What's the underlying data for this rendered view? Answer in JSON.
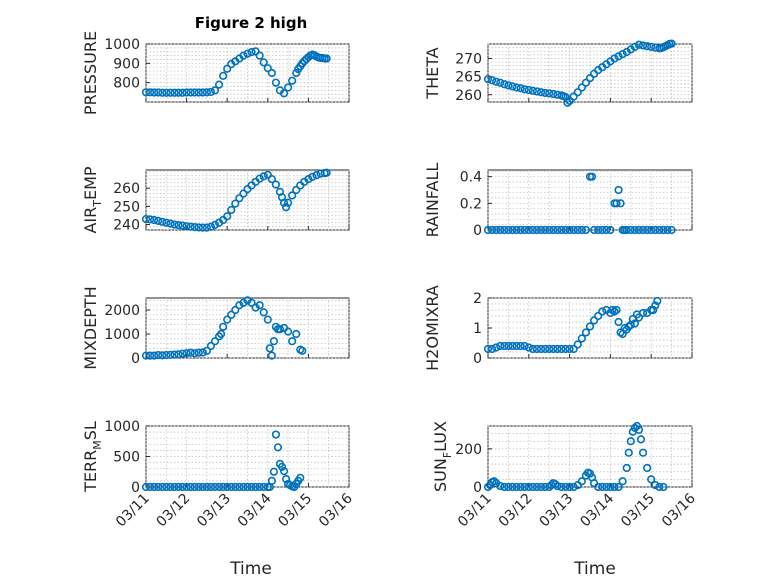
{
  "figure": {
    "title": "Figure 2 high",
    "marker_color": "#0072bd",
    "xlabel": "Time"
  },
  "chart_data": [
    {
      "id": "pressure",
      "type": "scatter",
      "title": "Figure 2 high",
      "ylabel": "PRESSURE",
      "ylim": [
        700,
        1000
      ],
      "yticks": [
        800,
        900,
        1000
      ],
      "xlim": [
        0,
        5
      ],
      "xticks": [
        0,
        1,
        2,
        3,
        4,
        5
      ],
      "xticklabels": [
        "03/11",
        "03/12",
        "03/13",
        "03/14",
        "03/15",
        "03/16"
      ],
      "show_xticklabels": false,
      "grid": true,
      "x": [
        0.0,
        0.1,
        0.2,
        0.3,
        0.4,
        0.5,
        0.6,
        0.7,
        0.8,
        0.9,
        1.0,
        1.1,
        1.2,
        1.3,
        1.4,
        1.5,
        1.6,
        1.7,
        1.8,
        1.9,
        2.0,
        2.1,
        2.2,
        2.3,
        2.4,
        2.5,
        2.6,
        2.7,
        2.8,
        2.9,
        3.0,
        3.1,
        3.2,
        3.3,
        3.4,
        3.5,
        3.6,
        3.7,
        3.75,
        3.8,
        3.85,
        3.9,
        3.95,
        4.0,
        4.05,
        4.1,
        4.15,
        4.2,
        4.25,
        4.3,
        4.35,
        4.4,
        4.45
      ],
      "y": [
        750,
        750,
        749,
        749,
        748,
        748,
        748,
        748,
        748,
        748,
        749,
        749,
        749,
        749,
        749,
        750,
        752,
        760,
        790,
        835,
        872,
        896,
        910,
        925,
        940,
        950,
        958,
        962,
        940,
        905,
        875,
        850,
        800,
        760,
        745,
        775,
        810,
        850,
        870,
        885,
        900,
        912,
        922,
        932,
        940,
        945,
        942,
        935,
        930,
        928,
        928,
        925,
        925
      ]
    },
    {
      "id": "theta",
      "type": "scatter",
      "ylabel": "THETA",
      "ylim": [
        258,
        274
      ],
      "yticks": [
        260,
        265,
        270
      ],
      "xlim": [
        0,
        5
      ],
      "xticks": [
        0,
        1,
        2,
        3,
        4,
        5
      ],
      "xticklabels": [
        "03/11",
        "03/12",
        "03/13",
        "03/14",
        "03/15",
        "03/16"
      ],
      "show_xticklabels": false,
      "grid": true,
      "x": [
        0.0,
        0.1,
        0.2,
        0.3,
        0.4,
        0.5,
        0.6,
        0.7,
        0.8,
        0.9,
        1.0,
        1.1,
        1.2,
        1.3,
        1.4,
        1.5,
        1.6,
        1.7,
        1.8,
        1.85,
        1.9,
        1.95,
        2.0,
        2.1,
        2.2,
        2.3,
        2.4,
        2.5,
        2.6,
        2.7,
        2.8,
        2.9,
        3.0,
        3.1,
        3.2,
        3.3,
        3.4,
        3.5,
        3.6,
        3.7,
        3.8,
        3.9,
        4.0,
        4.1,
        4.2,
        4.25,
        4.3,
        4.35,
        4.4,
        4.45,
        4.5
      ],
      "y": [
        264.3,
        264.0,
        263.6,
        263.3,
        262.9,
        262.6,
        262.3,
        262.0,
        261.8,
        261.5,
        261.3,
        261.1,
        260.9,
        260.7,
        260.5,
        260.4,
        260.2,
        260.0,
        259.8,
        259.6,
        259.4,
        257.8,
        258.3,
        259.5,
        260.7,
        262.0,
        263.3,
        264.6,
        265.8,
        266.8,
        267.6,
        268.4,
        269.2,
        270.0,
        270.6,
        271.2,
        271.8,
        272.5,
        273.2,
        273.8,
        273.6,
        273.4,
        273.2,
        273.0,
        272.8,
        272.9,
        273.1,
        273.4,
        273.7,
        274.0,
        274.1
      ]
    },
    {
      "id": "air-temp",
      "type": "scatter",
      "ylabel": "AIR_TEMP",
      "ylim": [
        237,
        270
      ],
      "yticks": [
        240,
        250,
        260
      ],
      "xlim": [
        0,
        5
      ],
      "xticks": [
        0,
        1,
        2,
        3,
        4,
        5
      ],
      "xticklabels": [
        "03/11",
        "03/12",
        "03/13",
        "03/14",
        "03/15",
        "03/16"
      ],
      "show_xticklabels": false,
      "grid": true,
      "x": [
        0.0,
        0.1,
        0.2,
        0.3,
        0.4,
        0.5,
        0.6,
        0.7,
        0.8,
        0.9,
        1.0,
        1.1,
        1.2,
        1.3,
        1.4,
        1.5,
        1.6,
        1.7,
        1.8,
        1.9,
        2.0,
        2.1,
        2.2,
        2.3,
        2.4,
        2.5,
        2.6,
        2.7,
        2.8,
        2.9,
        3.0,
        3.1,
        3.2,
        3.3,
        3.35,
        3.4,
        3.45,
        3.5,
        3.6,
        3.7,
        3.8,
        3.9,
        4.0,
        4.1,
        4.2,
        4.3,
        4.4,
        4.45
      ],
      "y": [
        243,
        242.8,
        242.5,
        242,
        241.5,
        241,
        240.5,
        240,
        239.7,
        239.4,
        239.1,
        238.8,
        238.6,
        238.4,
        238.3,
        238.3,
        238.8,
        239.8,
        241,
        242.5,
        244.5,
        248,
        251.5,
        254.5,
        257,
        259.5,
        261.5,
        263.5,
        265.3,
        266.5,
        267.3,
        265,
        262,
        258,
        255,
        252,
        249.5,
        252,
        256,
        259,
        261.5,
        263.5,
        265,
        266.2,
        267.2,
        268,
        268.3,
        268.5
      ]
    },
    {
      "id": "rainfall",
      "type": "scatter",
      "ylabel": "RAINFALL",
      "ylim": [
        0,
        0.45
      ],
      "yticks": [
        0,
        0.2,
        0.4
      ],
      "xlim": [
        0,
        5
      ],
      "xticks": [
        0,
        1,
        2,
        3,
        4,
        5
      ],
      "xticklabels": [
        "03/11",
        "03/12",
        "03/13",
        "03/14",
        "03/15",
        "03/16"
      ],
      "show_xticklabels": false,
      "grid": true,
      "x": [
        0.0,
        0.1,
        0.2,
        0.3,
        0.4,
        0.5,
        0.6,
        0.7,
        0.8,
        0.9,
        1.0,
        1.1,
        1.2,
        1.3,
        1.4,
        1.5,
        1.6,
        1.7,
        1.8,
        1.9,
        2.0,
        2.1,
        2.2,
        2.3,
        2.4,
        2.5,
        2.55,
        2.6,
        2.7,
        2.8,
        2.9,
        3.0,
        3.1,
        3.15,
        3.2,
        3.25,
        3.3,
        3.35,
        3.4,
        3.5,
        3.6,
        3.7,
        3.8,
        3.9,
        4.0,
        4.1,
        4.2,
        4.3,
        4.4,
        4.5
      ],
      "y": [
        0,
        0,
        0,
        0,
        0,
        0,
        0,
        0,
        0,
        0,
        0,
        0,
        0,
        0,
        0,
        0,
        0,
        0,
        0,
        0,
        0,
        0,
        0,
        0,
        0,
        0.4,
        0.4,
        0,
        0,
        0,
        0,
        0,
        0.2,
        0.2,
        0.3,
        0.2,
        0,
        0,
        0,
        0,
        0,
        0,
        0,
        0,
        0,
        0,
        0,
        0,
        0,
        0
      ]
    },
    {
      "id": "mixdepth",
      "type": "scatter",
      "ylabel": "MIXDEPTH",
      "ylim": [
        0,
        2500
      ],
      "yticks": [
        0,
        1000,
        2000
      ],
      "xlim": [
        0,
        5
      ],
      "xticks": [
        0,
        1,
        2,
        3,
        4,
        5
      ],
      "xticklabels": [
        "03/11",
        "03/12",
        "03/13",
        "03/14",
        "03/15",
        "03/16"
      ],
      "show_xticklabels": false,
      "grid": true,
      "x": [
        0.0,
        0.1,
        0.2,
        0.3,
        0.4,
        0.5,
        0.6,
        0.7,
        0.8,
        0.9,
        1.0,
        1.1,
        1.2,
        1.3,
        1.4,
        1.5,
        1.6,
        1.7,
        1.8,
        1.85,
        1.9,
        2.0,
        2.1,
        2.2,
        2.3,
        2.4,
        2.5,
        2.6,
        2.7,
        2.8,
        2.9,
        3.0,
        3.05,
        3.1,
        3.15,
        3.2,
        3.25,
        3.3,
        3.4,
        3.5,
        3.6,
        3.7,
        3.8,
        3.85
      ],
      "y": [
        100,
        100,
        100,
        120,
        110,
        120,
        130,
        140,
        150,
        180,
        200,
        220,
        200,
        220,
        230,
        300,
        500,
        700,
        900,
        1000,
        1300,
        1600,
        1800,
        2000,
        2200,
        2300,
        2400,
        2300,
        2100,
        2200,
        1900,
        1600,
        400,
        100,
        700,
        1300,
        1200,
        1200,
        1250,
        1100,
        700,
        1000,
        350,
        300
      ]
    },
    {
      "id": "h2omixra",
      "type": "scatter",
      "ylabel": "H2OMIXRA",
      "ylim": [
        0,
        2
      ],
      "yticks": [
        0,
        1,
        2
      ],
      "xlim": [
        0,
        5
      ],
      "xticks": [
        0,
        1,
        2,
        3,
        4,
        5
      ],
      "xticklabels": [
        "03/11",
        "03/12",
        "03/13",
        "03/14",
        "03/15",
        "03/16"
      ],
      "show_xticklabels": false,
      "grid": true,
      "x": [
        0.0,
        0.1,
        0.2,
        0.3,
        0.4,
        0.5,
        0.6,
        0.7,
        0.8,
        0.9,
        1.0,
        1.1,
        1.2,
        1.3,
        1.4,
        1.5,
        1.6,
        1.7,
        1.8,
        1.9,
        2.0,
        2.1,
        2.2,
        2.3,
        2.4,
        2.5,
        2.6,
        2.7,
        2.8,
        2.9,
        3.0,
        3.05,
        3.1,
        3.15,
        3.2,
        3.25,
        3.3,
        3.35,
        3.4,
        3.45,
        3.5,
        3.55,
        3.6,
        3.65,
        3.7,
        3.8,
        3.9,
        4.0,
        4.05,
        4.1,
        4.15
      ],
      "y": [
        0.3,
        0.3,
        0.35,
        0.4,
        0.4,
        0.4,
        0.4,
        0.4,
        0.4,
        0.4,
        0.35,
        0.3,
        0.3,
        0.3,
        0.3,
        0.3,
        0.3,
        0.3,
        0.3,
        0.3,
        0.3,
        0.3,
        0.45,
        0.65,
        0.85,
        1.05,
        1.25,
        1.4,
        1.55,
        1.6,
        1.5,
        1.6,
        1.55,
        1.6,
        1.2,
        0.85,
        0.8,
        1.0,
        0.95,
        1.05,
        1.1,
        1.3,
        1.15,
        1.45,
        1.35,
        1.5,
        1.5,
        1.6,
        1.6,
        1.75,
        1.9
      ]
    },
    {
      "id": "terr-msl",
      "type": "scatter",
      "ylabel": "TERR_MSL",
      "ylim": [
        0,
        1000
      ],
      "yticks": [
        0,
        500,
        1000
      ],
      "xlim": [
        0,
        5
      ],
      "xticks": [
        0,
        1,
        2,
        3,
        4,
        5
      ],
      "xticklabels": [
        "03/11",
        "03/12",
        "03/13",
        "03/14",
        "03/15",
        "03/16"
      ],
      "show_xticklabels": true,
      "grid": true,
      "x": [
        0.0,
        0.1,
        0.2,
        0.3,
        0.4,
        0.5,
        0.6,
        0.7,
        0.8,
        0.9,
        1.0,
        1.1,
        1.2,
        1.3,
        1.4,
        1.5,
        1.6,
        1.7,
        1.8,
        1.9,
        2.0,
        2.1,
        2.2,
        2.3,
        2.4,
        2.5,
        2.6,
        2.7,
        2.8,
        2.9,
        3.0,
        3.05,
        3.1,
        3.15,
        3.2,
        3.25,
        3.3,
        3.35,
        3.4,
        3.45,
        3.5,
        3.55,
        3.6,
        3.65,
        3.7,
        3.75,
        3.8
      ],
      "y": [
        0,
        0,
        0,
        0,
        0,
        0,
        0,
        0,
        0,
        0,
        0,
        0,
        0,
        0,
        0,
        0,
        0,
        0,
        0,
        0,
        0,
        0,
        0,
        0,
        0,
        0,
        0,
        0,
        0,
        0,
        0,
        0,
        100,
        250,
        860,
        650,
        380,
        330,
        260,
        130,
        50,
        30,
        10,
        0,
        50,
        100,
        150
      ]
    },
    {
      "id": "sun-flux",
      "type": "scatter",
      "ylabel": "SUN_FLUX",
      "ylim": [
        0,
        320
      ],
      "yticks": [
        0,
        200
      ],
      "xlim": [
        0,
        5
      ],
      "xticks": [
        0,
        1,
        2,
        3,
        4,
        5
      ],
      "xticklabels": [
        "03/11",
        "03/12",
        "03/13",
        "03/14",
        "03/15",
        "03/16"
      ],
      "show_xticklabels": true,
      "grid": true,
      "x": [
        0.0,
        0.05,
        0.1,
        0.15,
        0.2,
        0.3,
        0.4,
        0.5,
        0.6,
        0.7,
        0.8,
        0.9,
        1.0,
        1.1,
        1.2,
        1.3,
        1.4,
        1.5,
        1.55,
        1.6,
        1.65,
        1.7,
        1.8,
        1.9,
        2.0,
        2.1,
        2.2,
        2.3,
        2.4,
        2.45,
        2.5,
        2.55,
        2.6,
        2.7,
        2.8,
        2.9,
        3.0,
        3.1,
        3.2,
        3.3,
        3.4,
        3.45,
        3.5,
        3.55,
        3.6,
        3.65,
        3.7,
        3.75,
        3.8,
        3.9,
        4.0,
        4.1,
        4.2,
        4.3
      ],
      "y": [
        0,
        10,
        25,
        30,
        20,
        5,
        0,
        0,
        0,
        0,
        0,
        0,
        0,
        0,
        0,
        0,
        0,
        0,
        10,
        20,
        15,
        5,
        0,
        0,
        0,
        0,
        10,
        30,
        60,
        75,
        70,
        50,
        20,
        0,
        0,
        0,
        0,
        0,
        0,
        30,
        100,
        180,
        240,
        290,
        310,
        320,
        300,
        250,
        180,
        100,
        40,
        10,
        0,
        0
      ]
    }
  ]
}
